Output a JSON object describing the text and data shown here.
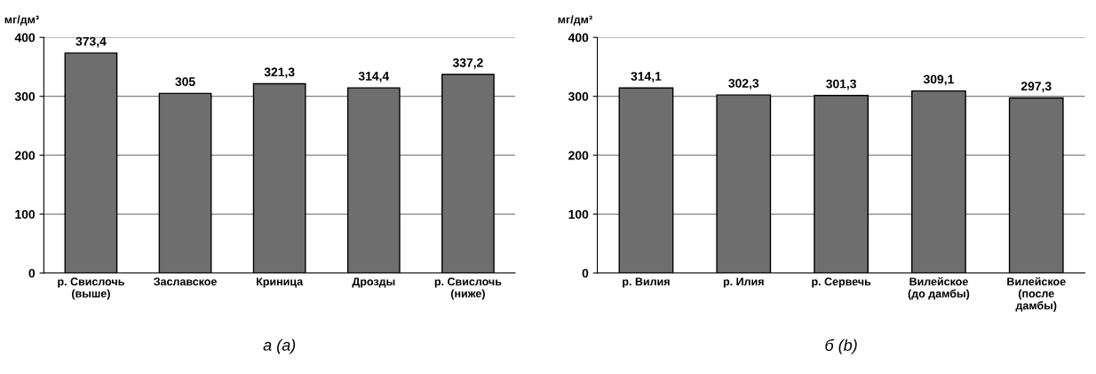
{
  "chart_data": [
    {
      "type": "bar",
      "ylabel": "мг/дм³",
      "categories": [
        "р. Свислочь\n(выше)",
        "Заславское",
        "Криница",
        "Дрозды",
        "р. Свислочь\n(ниже)"
      ],
      "values": [
        373.4,
        305,
        321.3,
        314.4,
        337.2
      ],
      "value_labels": [
        "373,4",
        "305",
        "321,3",
        "314,4",
        "337,2"
      ],
      "color": "#6e6e6e",
      "ylim": [
        0,
        400
      ],
      "yticks": [
        0,
        100,
        200,
        300,
        400
      ],
      "grid": "y",
      "annotations": [
        "а (a)"
      ]
    },
    {
      "type": "bar",
      "ylabel": "мг/дм³",
      "categories": [
        "р. Вилия",
        "р. Илия",
        "р. Сервечь",
        "Вилейское\n(до дамбы)",
        "Вилейское\n(после\nдамбы)"
      ],
      "values": [
        314.1,
        302.3,
        301.3,
        309.1,
        297.3
      ],
      "value_labels": [
        "314,1",
        "302,3",
        "301,3",
        "309,1",
        "297,3"
      ],
      "color": "#6e6e6e",
      "ylim": [
        0,
        400
      ],
      "yticks": [
        0,
        100,
        200,
        300,
        400
      ],
      "grid": "y",
      "annotations": [
        "б (b)"
      ]
    }
  ]
}
